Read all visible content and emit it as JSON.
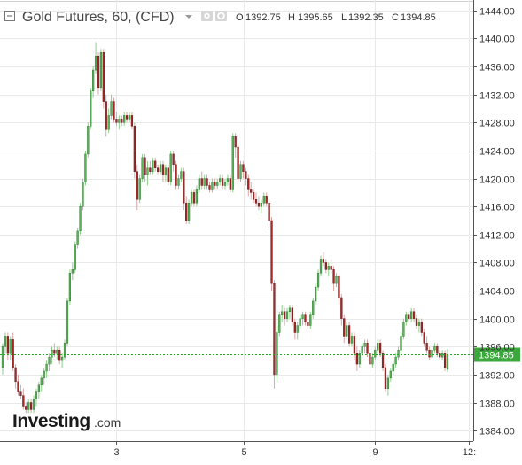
{
  "header": {
    "title": "Gold Futures, 60, (CFD)",
    "ohlc": {
      "open_label": "O",
      "open": "1392.75",
      "high_label": "H",
      "high": "1395.65",
      "low_label": "L",
      "low": "1392.35",
      "close_label": "C",
      "close": "1394.85"
    }
  },
  "watermark": {
    "brand": "Investing",
    "suffix": ".com"
  },
  "colors": {
    "up": "#5ab25a",
    "down": "#a52a2a",
    "grid": "#e9e9e9",
    "axis": "#555555",
    "price_line": "#22aa22",
    "price_tag_bg": "#3aa83a"
  },
  "chart_data": {
    "type": "candlestick",
    "y_ticks": [
      "1444.00",
      "1440.00",
      "1436.00",
      "1432.00",
      "1428.00",
      "1424.00",
      "1420.00",
      "1416.00",
      "1412.00",
      "1408.00",
      "1404.00",
      "1400.00",
      "1396.00",
      "1392.00",
      "1388.00",
      "1384.00"
    ],
    "ylim": [
      1382.5,
      1445.5
    ],
    "x_ticks": [
      "3",
      "5",
      "9",
      "12:"
    ],
    "current_price": "1394.85",
    "current_value": 1394.85,
    "candles": [
      [
        1393.0,
        1396.5,
        1392.0,
        1396.0
      ],
      [
        1396.0,
        1398.0,
        1395.0,
        1397.5
      ],
      [
        1397.5,
        1398.0,
        1394.0,
        1395.0
      ],
      [
        1395.0,
        1397.5,
        1394.0,
        1397.0
      ],
      [
        1397.0,
        1398.0,
        1392.5,
        1393.0
      ],
      [
        1393.0,
        1393.5,
        1390.0,
        1391.0
      ],
      [
        1391.0,
        1392.0,
        1389.0,
        1389.5
      ],
      [
        1389.5,
        1390.5,
        1388.5,
        1389.0
      ],
      [
        1389.0,
        1390.0,
        1387.0,
        1387.5
      ],
      [
        1387.5,
        1388.0,
        1386.5,
        1387.0
      ],
      [
        1387.0,
        1388.5,
        1386.5,
        1388.0
      ],
      [
        1388.0,
        1388.5,
        1386.5,
        1387.0
      ],
      [
        1387.0,
        1389.0,
        1386.5,
        1388.5
      ],
      [
        1388.5,
        1390.0,
        1387.5,
        1389.5
      ],
      [
        1389.5,
        1391.0,
        1388.5,
        1390.5
      ],
      [
        1390.5,
        1392.0,
        1389.5,
        1391.5
      ],
      [
        1391.5,
        1393.0,
        1390.5,
        1392.5
      ],
      [
        1392.5,
        1394.0,
        1391.5,
        1393.5
      ],
      [
        1393.5,
        1395.0,
        1392.5,
        1394.5
      ],
      [
        1394.5,
        1396.0,
        1393.5,
        1395.5
      ],
      [
        1395.5,
        1396.5,
        1394.5,
        1395.0
      ],
      [
        1395.0,
        1396.0,
        1394.0,
        1395.5
      ],
      [
        1395.5,
        1396.0,
        1393.5,
        1394.0
      ],
      [
        1394.0,
        1395.0,
        1393.0,
        1394.5
      ],
      [
        1394.5,
        1397.0,
        1394.0,
        1396.5
      ],
      [
        1396.5,
        1403.0,
        1396.0,
        1402.5
      ],
      [
        1402.5,
        1407.0,
        1402.0,
        1406.5
      ],
      [
        1406.5,
        1408.0,
        1405.5,
        1407.0
      ],
      [
        1407.0,
        1411.0,
        1406.5,
        1410.5
      ],
      [
        1410.5,
        1413.0,
        1410.0,
        1412.5
      ],
      [
        1412.5,
        1416.5,
        1412.0,
        1416.0
      ],
      [
        1416.0,
        1420.0,
        1415.5,
        1419.5
      ],
      [
        1419.5,
        1424.0,
        1419.0,
        1423.5
      ],
      [
        1423.5,
        1428.0,
        1423.0,
        1427.5
      ],
      [
        1427.5,
        1433.0,
        1427.0,
        1432.5
      ],
      [
        1432.5,
        1436.0,
        1431.5,
        1435.5
      ],
      [
        1435.5,
        1439.5,
        1435.0,
        1437.5
      ],
      [
        1437.5,
        1438.0,
        1432.0,
        1433.0
      ],
      [
        1433.0,
        1438.5,
        1432.5,
        1438.0
      ],
      [
        1438.0,
        1438.5,
        1430.0,
        1431.0
      ],
      [
        1431.0,
        1432.0,
        1426.0,
        1427.0
      ],
      [
        1427.0,
        1430.0,
        1426.5,
        1429.0
      ],
      [
        1429.0,
        1432.0,
        1428.5,
        1431.0
      ],
      [
        1431.0,
        1431.5,
        1428.0,
        1428.5
      ],
      [
        1428.5,
        1429.5,
        1427.5,
        1428.0
      ],
      [
        1428.0,
        1429.0,
        1427.0,
        1428.5
      ],
      [
        1428.5,
        1429.0,
        1427.5,
        1428.0
      ],
      [
        1428.0,
        1429.5,
        1427.5,
        1429.0
      ],
      [
        1429.0,
        1429.5,
        1428.0,
        1428.5
      ],
      [
        1428.5,
        1429.5,
        1428.0,
        1429.0
      ],
      [
        1429.0,
        1429.5,
        1427.0,
        1427.5
      ],
      [
        1427.5,
        1428.0,
        1420.0,
        1421.0
      ],
      [
        1421.0,
        1422.0,
        1415.5,
        1417.0
      ],
      [
        1417.0,
        1420.5,
        1416.5,
        1420.0
      ],
      [
        1420.0,
        1423.5,
        1419.5,
        1423.0
      ],
      [
        1423.0,
        1423.5,
        1419.5,
        1420.5
      ],
      [
        1420.5,
        1422.5,
        1419.0,
        1421.5
      ],
      [
        1421.5,
        1422.5,
        1420.5,
        1421.0
      ],
      [
        1421.0,
        1423.0,
        1420.5,
        1422.5
      ],
      [
        1422.5,
        1423.0,
        1421.0,
        1421.5
      ],
      [
        1421.5,
        1422.0,
        1420.5,
        1421.0
      ],
      [
        1421.0,
        1422.5,
        1420.5,
        1422.0
      ],
      [
        1422.0,
        1422.5,
        1419.5,
        1420.5
      ],
      [
        1420.5,
        1422.0,
        1419.5,
        1421.5
      ],
      [
        1421.5,
        1422.0,
        1419.0,
        1419.5
      ],
      [
        1419.5,
        1424.0,
        1419.0,
        1423.5
      ],
      [
        1423.5,
        1424.0,
        1421.0,
        1422.0
      ],
      [
        1422.0,
        1422.5,
        1418.5,
        1419.0
      ],
      [
        1419.0,
        1420.5,
        1418.5,
        1420.0
      ],
      [
        1420.0,
        1421.5,
        1419.5,
        1421.0
      ],
      [
        1421.0,
        1421.5,
        1415.5,
        1416.5
      ],
      [
        1416.5,
        1417.5,
        1413.5,
        1414.0
      ],
      [
        1414.0,
        1417.0,
        1413.5,
        1416.5
      ],
      [
        1416.5,
        1418.5,
        1416.0,
        1418.0
      ],
      [
        1418.0,
        1418.5,
        1416.0,
        1416.5
      ],
      [
        1416.5,
        1419.0,
        1416.0,
        1418.5
      ],
      [
        1418.5,
        1420.5,
        1418.0,
        1420.0
      ],
      [
        1420.0,
        1421.0,
        1418.5,
        1419.0
      ],
      [
        1419.0,
        1420.5,
        1418.5,
        1420.0
      ],
      [
        1420.0,
        1420.5,
        1418.5,
        1419.0
      ],
      [
        1419.0,
        1419.5,
        1418.0,
        1418.5
      ],
      [
        1418.5,
        1420.0,
        1418.0,
        1419.5
      ],
      [
        1419.5,
        1420.0,
        1418.5,
        1419.0
      ],
      [
        1419.0,
        1420.0,
        1418.5,
        1419.5
      ],
      [
        1419.5,
        1420.5,
        1419.0,
        1420.0
      ],
      [
        1420.0,
        1420.5,
        1418.5,
        1419.0
      ],
      [
        1419.0,
        1420.0,
        1418.5,
        1419.5
      ],
      [
        1419.5,
        1420.5,
        1419.0,
        1420.0
      ],
      [
        1420.0,
        1420.5,
        1418.0,
        1418.5
      ],
      [
        1418.5,
        1426.5,
        1418.0,
        1426.0
      ],
      [
        1426.0,
        1426.5,
        1423.0,
        1424.5
      ],
      [
        1424.5,
        1425.0,
        1419.5,
        1420.0
      ],
      [
        1420.0,
        1422.5,
        1419.5,
        1422.0
      ],
      [
        1422.0,
        1422.5,
        1420.0,
        1421.0
      ],
      [
        1421.0,
        1421.5,
        1419.0,
        1420.0
      ],
      [
        1420.0,
        1420.5,
        1417.5,
        1418.5
      ],
      [
        1418.5,
        1419.5,
        1417.0,
        1418.0
      ],
      [
        1418.0,
        1418.5,
        1416.5,
        1417.0
      ],
      [
        1417.0,
        1418.0,
        1416.0,
        1416.5
      ],
      [
        1416.5,
        1417.5,
        1415.5,
        1416.0
      ],
      [
        1416.0,
        1417.0,
        1415.0,
        1416.5
      ],
      [
        1416.5,
        1418.0,
        1416.0,
        1417.5
      ],
      [
        1417.5,
        1418.0,
        1416.0,
        1416.5
      ],
      [
        1416.5,
        1417.0,
        1413.0,
        1414.0
      ],
      [
        1414.0,
        1414.5,
        1404.0,
        1405.0
      ],
      [
        1405.0,
        1405.5,
        1390.0,
        1392.0
      ],
      [
        1392.0,
        1399.0,
        1391.0,
        1398.0
      ],
      [
        1398.0,
        1401.0,
        1397.5,
        1400.5
      ],
      [
        1400.5,
        1402.0,
        1399.5,
        1401.0
      ],
      [
        1401.0,
        1401.5,
        1399.0,
        1400.0
      ],
      [
        1400.0,
        1401.5,
        1399.5,
        1401.0
      ],
      [
        1401.0,
        1402.0,
        1400.0,
        1401.5
      ],
      [
        1401.5,
        1402.0,
        1399.0,
        1399.5
      ],
      [
        1399.5,
        1400.0,
        1397.0,
        1398.0
      ],
      [
        1398.0,
        1399.5,
        1397.0,
        1399.0
      ],
      [
        1399.0,
        1400.5,
        1398.5,
        1400.0
      ],
      [
        1400.0,
        1401.0,
        1399.0,
        1400.5
      ],
      [
        1400.5,
        1401.0,
        1399.0,
        1399.5
      ],
      [
        1399.5,
        1400.0,
        1398.5,
        1399.0
      ],
      [
        1399.0,
        1401.0,
        1398.5,
        1400.5
      ],
      [
        1400.5,
        1403.0,
        1400.0,
        1402.5
      ],
      [
        1402.5,
        1405.0,
        1402.0,
        1404.5
      ],
      [
        1404.5,
        1407.0,
        1404.0,
        1406.5
      ],
      [
        1406.5,
        1409.0,
        1406.0,
        1408.5
      ],
      [
        1408.5,
        1409.5,
        1407.5,
        1408.0
      ],
      [
        1408.0,
        1408.5,
        1406.5,
        1407.0
      ],
      [
        1407.0,
        1408.0,
        1406.0,
        1407.5
      ],
      [
        1407.5,
        1408.5,
        1406.5,
        1407.0
      ],
      [
        1407.0,
        1407.5,
        1404.0,
        1405.0
      ],
      [
        1405.0,
        1406.5,
        1404.5,
        1406.0
      ],
      [
        1406.0,
        1406.5,
        1402.0,
        1403.0
      ],
      [
        1403.0,
        1403.5,
        1399.0,
        1400.0
      ],
      [
        1400.0,
        1400.5,
        1396.5,
        1397.5
      ],
      [
        1397.5,
        1399.5,
        1397.0,
        1399.0
      ],
      [
        1399.0,
        1399.5,
        1396.0,
        1396.5
      ],
      [
        1396.5,
        1398.0,
        1396.0,
        1397.5
      ],
      [
        1397.5,
        1398.0,
        1394.0,
        1395.0
      ],
      [
        1395.0,
        1396.0,
        1392.5,
        1393.5
      ],
      [
        1393.5,
        1395.5,
        1393.0,
        1395.0
      ],
      [
        1395.0,
        1396.5,
        1394.5,
        1396.0
      ],
      [
        1396.0,
        1397.0,
        1395.0,
        1396.5
      ],
      [
        1396.5,
        1397.0,
        1394.5,
        1395.0
      ],
      [
        1395.0,
        1395.5,
        1393.0,
        1393.5
      ],
      [
        1393.5,
        1395.0,
        1393.0,
        1394.5
      ],
      [
        1394.5,
        1396.0,
        1394.0,
        1395.5
      ],
      [
        1395.5,
        1397.0,
        1395.0,
        1396.5
      ],
      [
        1396.5,
        1397.0,
        1394.5,
        1395.0
      ],
      [
        1395.0,
        1395.5,
        1392.5,
        1393.0
      ],
      [
        1393.0,
        1393.5,
        1389.5,
        1390.0
      ],
      [
        1390.0,
        1392.0,
        1389.0,
        1391.5
      ],
      [
        1391.5,
        1393.0,
        1391.0,
        1392.5
      ],
      [
        1392.5,
        1394.0,
        1392.0,
        1393.5
      ],
      [
        1393.5,
        1395.0,
        1393.0,
        1394.5
      ],
      [
        1394.5,
        1396.0,
        1394.0,
        1395.5
      ],
      [
        1395.5,
        1398.0,
        1395.0,
        1397.5
      ],
      [
        1397.5,
        1400.0,
        1397.0,
        1399.5
      ],
      [
        1399.5,
        1401.0,
        1399.0,
        1400.5
      ],
      [
        1400.5,
        1401.0,
        1399.5,
        1400.0
      ],
      [
        1400.0,
        1401.5,
        1399.5,
        1401.0
      ],
      [
        1401.0,
        1401.5,
        1399.5,
        1400.0
      ],
      [
        1400.0,
        1400.5,
        1398.5,
        1399.0
      ],
      [
        1399.0,
        1400.0,
        1398.0,
        1399.5
      ],
      [
        1399.5,
        1400.0,
        1397.5,
        1398.0
      ],
      [
        1398.0,
        1398.5,
        1396.0,
        1396.5
      ],
      [
        1396.5,
        1397.5,
        1395.0,
        1395.5
      ],
      [
        1395.5,
        1396.0,
        1394.0,
        1394.5
      ],
      [
        1394.5,
        1396.0,
        1394.0,
        1395.5
      ],
      [
        1395.5,
        1396.5,
        1395.0,
        1396.0
      ],
      [
        1396.0,
        1396.5,
        1394.5,
        1395.0
      ],
      [
        1395.0,
        1395.5,
        1394.0,
        1394.5
      ],
      [
        1394.5,
        1395.5,
        1394.0,
        1395.0
      ],
      [
        1395.0,
        1395.5,
        1392.5,
        1393.0
      ],
      [
        1392.75,
        1395.65,
        1392.35,
        1394.85
      ]
    ]
  }
}
